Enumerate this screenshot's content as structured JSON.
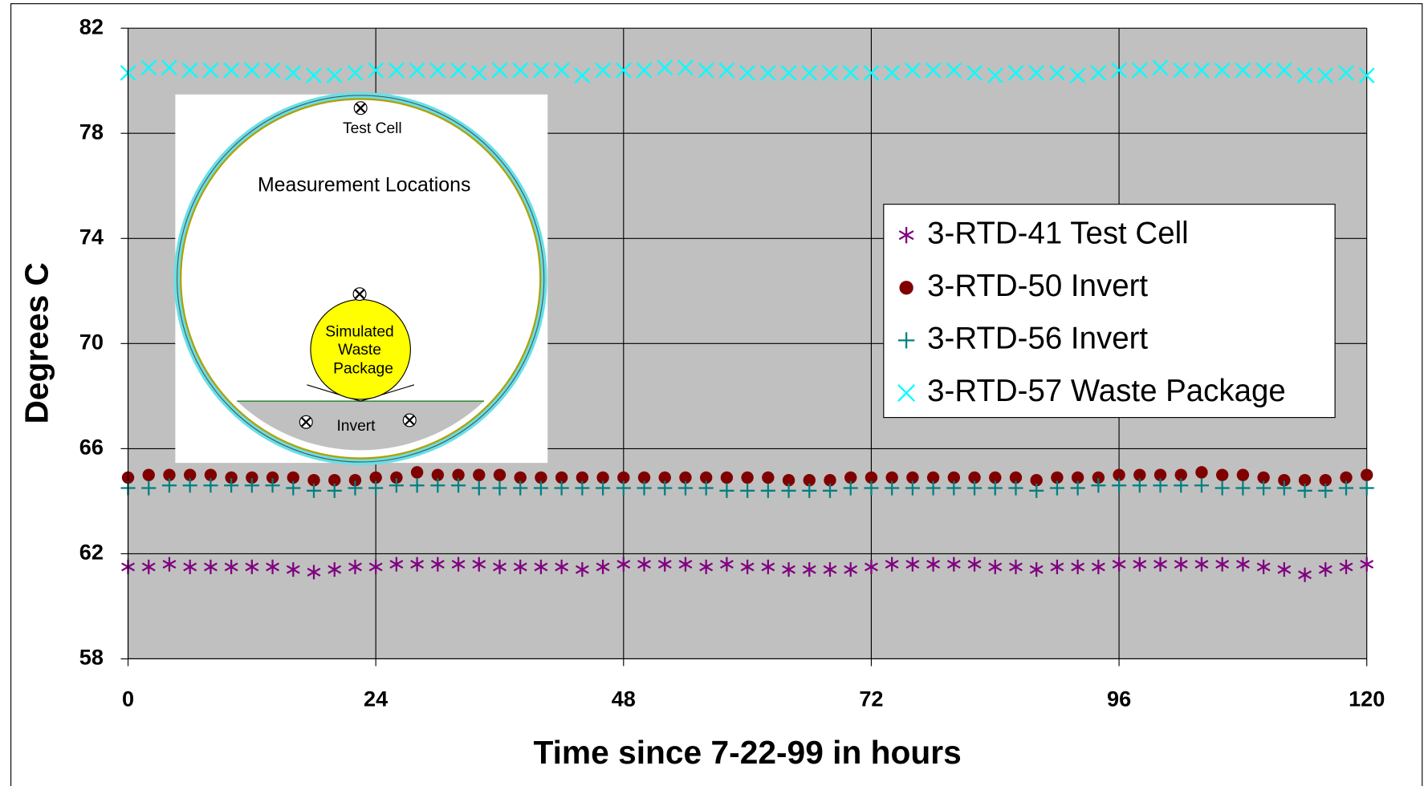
{
  "chart_data": {
    "type": "scatter",
    "x_label": "Time since 7-22-99 in hours",
    "y_label": "Degrees C",
    "xlim": [
      0,
      120
    ],
    "xticks": [
      0,
      24,
      48,
      72,
      96,
      120
    ],
    "ylim": [
      58,
      82
    ],
    "yticks": [
      58,
      62,
      66,
      70,
      74,
      78,
      82
    ],
    "grid": true,
    "background": "#c0c0c0",
    "x": [
      0,
      2,
      4,
      6,
      8,
      10,
      12,
      14,
      16,
      18,
      20,
      22,
      24,
      26,
      28,
      30,
      32,
      34,
      36,
      38,
      40,
      42,
      44,
      46,
      48,
      50,
      52,
      54,
      56,
      58,
      60,
      62,
      64,
      66,
      68,
      70,
      72,
      74,
      76,
      78,
      80,
      82,
      84,
      86,
      88,
      90,
      92,
      94,
      96,
      98,
      100,
      102,
      104,
      106,
      108,
      110,
      112,
      114,
      116,
      118,
      120
    ],
    "series": [
      {
        "name": "3-RTD-41 Test Cell",
        "color": "#800080",
        "marker": "asterisk",
        "values": [
          61.5,
          61.5,
          61.6,
          61.5,
          61.5,
          61.5,
          61.5,
          61.5,
          61.4,
          61.3,
          61.4,
          61.5,
          61.5,
          61.6,
          61.6,
          61.6,
          61.6,
          61.6,
          61.5,
          61.5,
          61.5,
          61.5,
          61.4,
          61.5,
          61.6,
          61.6,
          61.6,
          61.6,
          61.5,
          61.6,
          61.5,
          61.5,
          61.4,
          61.4,
          61.4,
          61.4,
          61.5,
          61.6,
          61.6,
          61.6,
          61.6,
          61.6,
          61.5,
          61.5,
          61.4,
          61.5,
          61.5,
          61.5,
          61.6,
          61.6,
          61.6,
          61.6,
          61.6,
          61.6,
          61.6,
          61.5,
          61.4,
          61.2,
          61.4,
          61.5,
          61.6
        ]
      },
      {
        "name": "3-RTD-50 Invert",
        "color": "#800000",
        "marker": "circle",
        "values": [
          64.9,
          65.0,
          65.0,
          65.0,
          65.0,
          64.9,
          64.9,
          64.9,
          64.9,
          64.8,
          64.8,
          64.8,
          64.9,
          64.9,
          65.1,
          65.0,
          65.0,
          65.0,
          65.0,
          64.9,
          64.9,
          64.9,
          64.9,
          64.9,
          64.9,
          64.9,
          64.9,
          64.9,
          64.9,
          64.9,
          64.9,
          64.9,
          64.8,
          64.8,
          64.8,
          64.9,
          64.9,
          64.9,
          64.9,
          64.9,
          64.9,
          64.9,
          64.9,
          64.9,
          64.8,
          64.9,
          64.9,
          64.9,
          65.0,
          65.0,
          65.0,
          65.0,
          65.1,
          65.0,
          65.0,
          64.9,
          64.8,
          64.8,
          64.8,
          64.9,
          65.0
        ]
      },
      {
        "name": "3-RTD-56 Invert",
        "color": "#008080",
        "marker": "plus",
        "values": [
          64.5,
          64.5,
          64.6,
          64.6,
          64.6,
          64.6,
          64.6,
          64.6,
          64.5,
          64.4,
          64.4,
          64.5,
          64.5,
          64.6,
          64.6,
          64.6,
          64.6,
          64.5,
          64.5,
          64.5,
          64.5,
          64.5,
          64.5,
          64.5,
          64.5,
          64.5,
          64.5,
          64.5,
          64.5,
          64.4,
          64.4,
          64.4,
          64.4,
          64.4,
          64.4,
          64.5,
          64.5,
          64.5,
          64.5,
          64.5,
          64.5,
          64.5,
          64.5,
          64.5,
          64.4,
          64.5,
          64.5,
          64.6,
          64.6,
          64.6,
          64.6,
          64.6,
          64.6,
          64.5,
          64.5,
          64.5,
          64.5,
          64.4,
          64.4,
          64.5,
          64.5
        ]
      },
      {
        "name": "3-RTD-57 Waste Package",
        "color": "#00ffff",
        "marker": "x",
        "values": [
          80.3,
          80.5,
          80.5,
          80.4,
          80.4,
          80.4,
          80.4,
          80.4,
          80.3,
          80.2,
          80.2,
          80.3,
          80.4,
          80.4,
          80.4,
          80.4,
          80.4,
          80.3,
          80.4,
          80.4,
          80.4,
          80.4,
          80.2,
          80.4,
          80.4,
          80.4,
          80.5,
          80.5,
          80.4,
          80.4,
          80.3,
          80.3,
          80.3,
          80.3,
          80.3,
          80.3,
          80.3,
          80.3,
          80.4,
          80.4,
          80.4,
          80.3,
          80.2,
          80.3,
          80.3,
          80.3,
          80.2,
          80.3,
          80.4,
          80.4,
          80.5,
          80.4,
          80.4,
          80.4,
          80.4,
          80.4,
          80.4,
          80.2,
          80.2,
          80.3,
          80.2
        ]
      }
    ],
    "inset": {
      "title": "Measurement Locations",
      "labels": [
        "Test Cell",
        "Simulated",
        "Waste",
        "Package",
        "Invert"
      ]
    }
  }
}
